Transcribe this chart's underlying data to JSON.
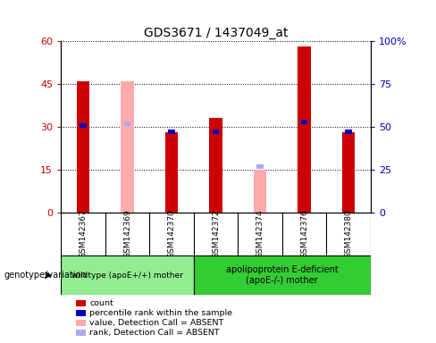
{
  "title": "GDS3671 / 1437049_at",
  "samples": [
    "GSM142367",
    "GSM142369",
    "GSM142370",
    "GSM142372",
    "GSM142374",
    "GSM142376",
    "GSM142380"
  ],
  "red_bars": [
    46,
    0,
    28,
    33,
    0,
    58,
    28
  ],
  "pink_bars": [
    0,
    46,
    0,
    0,
    15,
    0,
    0
  ],
  "blue_squares_pct": [
    51,
    0,
    47,
    47,
    0,
    53,
    47
  ],
  "light_blue_squares_pct": [
    0,
    52,
    0,
    0,
    27,
    0,
    0
  ],
  "ylim_left": [
    0,
    60
  ],
  "ylim_right": [
    0,
    100
  ],
  "yticks_left": [
    0,
    15,
    30,
    45,
    60
  ],
  "yticks_right": [
    0,
    25,
    50,
    75,
    100
  ],
  "ytick_labels_left": [
    "0",
    "15",
    "30",
    "45",
    "60"
  ],
  "ytick_labels_right": [
    "0",
    "25",
    "50",
    "75",
    "100%"
  ],
  "group1_label": "wildtype (apoE+/+) mother",
  "group2_label": "apolipoprotein E-deficient\n(apoE-/-) mother",
  "group_label_prefix": "genotype/variation",
  "group1_color": "#90ee90",
  "group2_color": "#33cc33",
  "red_color": "#cc0000",
  "pink_color": "#ffaaaa",
  "blue_color": "#0000bb",
  "light_blue_color": "#aaaaee",
  "tick_area_color": "#cccccc",
  "legend_items": [
    "count",
    "percentile rank within the sample",
    "value, Detection Call = ABSENT",
    "rank, Detection Call = ABSENT"
  ],
  "legend_colors": [
    "#cc0000",
    "#0000bb",
    "#ffaaaa",
    "#aaaaee"
  ]
}
